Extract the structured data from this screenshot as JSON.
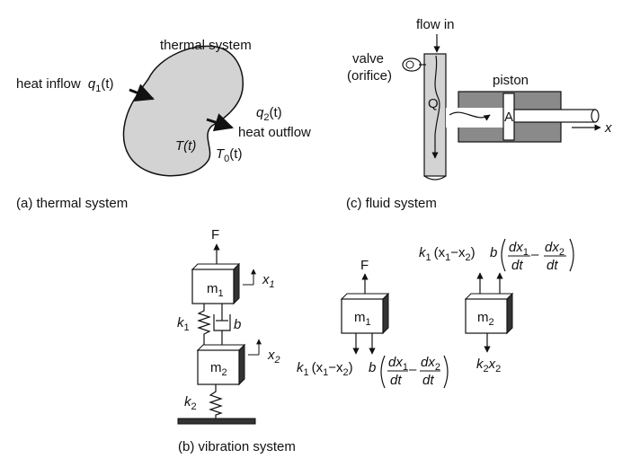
{
  "captions": {
    "thermal": "(a) thermal system",
    "fluid": "(c) fluid system",
    "vibration": "(b) vibration system"
  },
  "thermal": {
    "title": "thermal system",
    "heat_inflow": "heat inflow",
    "heat_outflow": "heat outflow",
    "q1": "q",
    "q1_sub": "1",
    "q1_arg": "(t)",
    "q2": "q",
    "q2_sub": "2",
    "q2_arg": "(t)",
    "T": "T(t)",
    "T0": "T",
    "T0_sub": "0",
    "T0_arg": "(t)"
  },
  "fluid": {
    "flow_in": "flow in",
    "valve": "valve",
    "orifice": "(orifice)",
    "piston": "piston",
    "Q": "Q",
    "A": "A",
    "x": "x"
  },
  "vibration": {
    "F": "F",
    "m": "m",
    "sub1": "1",
    "sub2": "2",
    "x": "x",
    "k": "k",
    "b": "b"
  },
  "fbd": {
    "F": "F",
    "k1_term": "k",
    "k1_paren_open": "(x",
    "k1_minus": "−x",
    "k1_paren_close": ")",
    "b": "b",
    "dx": "dx",
    "dt": "dt",
    "minus": "–",
    "k2x2_k": "k",
    "k2x2_x": "x"
  }
}
